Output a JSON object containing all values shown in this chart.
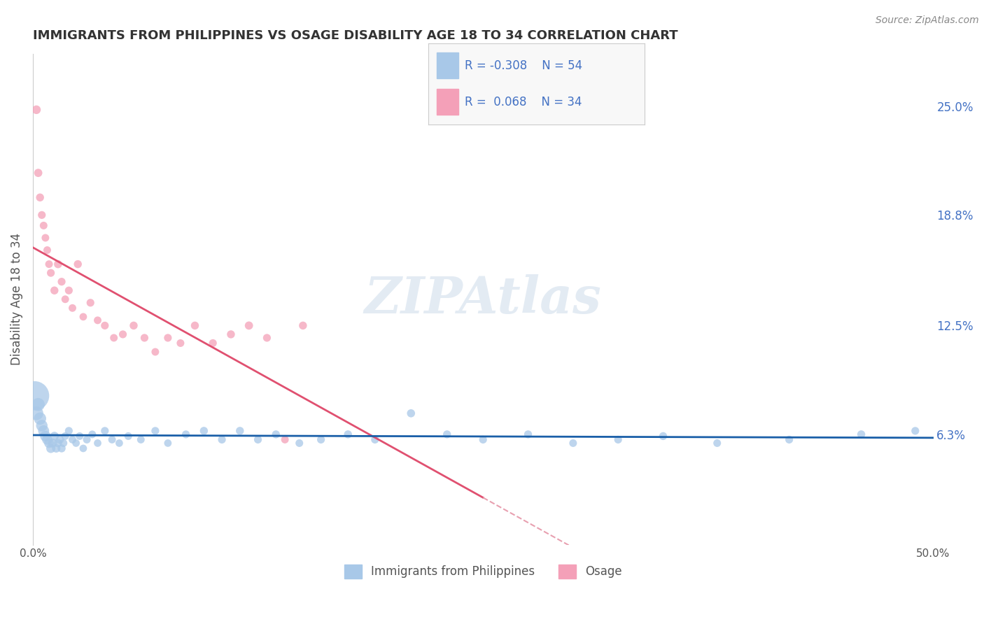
{
  "title": "IMMIGRANTS FROM PHILIPPINES VS OSAGE DISABILITY AGE 18 TO 34 CORRELATION CHART",
  "source": "Source: ZipAtlas.com",
  "ylabel": "Disability Age 18 to 34",
  "xlim": [
    0.0,
    0.5
  ],
  "ylim": [
    0.0,
    0.28
  ],
  "right_yticks": [
    0.063,
    0.125,
    0.188,
    0.25
  ],
  "right_yticklabels": [
    "6.3%",
    "12.5%",
    "18.8%",
    "25.0%"
  ],
  "legend_blue_label": "Immigrants from Philippines",
  "legend_pink_label": "Osage",
  "R_blue": -0.308,
  "N_blue": 54,
  "R_pink": 0.068,
  "N_pink": 34,
  "blue_color": "#a8c8e8",
  "pink_color": "#f4a0b8",
  "trendline_blue_color": "#1a5fa8",
  "trendline_pink_color": "#e05070",
  "trendline_pink_dashed_color": "#e8a0b0",
  "grid_color": "#cccccc",
  "background_color": "#ffffff",
  "blue_scatter": {
    "x": [
      0.001,
      0.002,
      0.003,
      0.004,
      0.005,
      0.006,
      0.007,
      0.008,
      0.009,
      0.01,
      0.011,
      0.012,
      0.013,
      0.014,
      0.015,
      0.016,
      0.017,
      0.018,
      0.02,
      0.022,
      0.024,
      0.026,
      0.028,
      0.03,
      0.033,
      0.036,
      0.04,
      0.044,
      0.048,
      0.053,
      0.06,
      0.068,
      0.075,
      0.085,
      0.095,
      0.105,
      0.115,
      0.125,
      0.135,
      0.148,
      0.16,
      0.175,
      0.19,
      0.21,
      0.23,
      0.25,
      0.275,
      0.3,
      0.325,
      0.35,
      0.38,
      0.42,
      0.46,
      0.49
    ],
    "y": [
      0.085,
      0.075,
      0.08,
      0.072,
      0.068,
      0.065,
      0.062,
      0.06,
      0.058,
      0.055,
      0.058,
      0.062,
      0.055,
      0.058,
      0.06,
      0.055,
      0.058,
      0.062,
      0.065,
      0.06,
      0.058,
      0.062,
      0.055,
      0.06,
      0.063,
      0.058,
      0.065,
      0.06,
      0.058,
      0.062,
      0.06,
      0.065,
      0.058,
      0.063,
      0.065,
      0.06,
      0.065,
      0.06,
      0.063,
      0.058,
      0.06,
      0.063,
      0.06,
      0.075,
      0.063,
      0.06,
      0.063,
      0.058,
      0.06,
      0.062,
      0.058,
      0.06,
      0.063,
      0.065
    ],
    "size": [
      900,
      200,
      180,
      160,
      140,
      130,
      120,
      110,
      100,
      90,
      85,
      80,
      75,
      72,
      70,
      68,
      65,
      62,
      65,
      62,
      60,
      62,
      60,
      63,
      62,
      60,
      65,
      62,
      60,
      63,
      62,
      65,
      60,
      65,
      68,
      65,
      68,
      65,
      67,
      63,
      65,
      68,
      65,
      70,
      67,
      65,
      67,
      63,
      65,
      67,
      63,
      65,
      68,
      65
    ]
  },
  "pink_scatter": {
    "x": [
      0.002,
      0.003,
      0.004,
      0.005,
      0.006,
      0.007,
      0.008,
      0.009,
      0.01,
      0.012,
      0.014,
      0.016,
      0.018,
      0.02,
      0.022,
      0.025,
      0.028,
      0.032,
      0.036,
      0.04,
      0.045,
      0.05,
      0.056,
      0.062,
      0.068,
      0.075,
      0.082,
      0.09,
      0.1,
      0.11,
      0.12,
      0.13,
      0.14,
      0.15
    ],
    "y": [
      0.248,
      0.212,
      0.198,
      0.188,
      0.182,
      0.175,
      0.168,
      0.16,
      0.155,
      0.145,
      0.16,
      0.15,
      0.14,
      0.145,
      0.135,
      0.16,
      0.13,
      0.138,
      0.128,
      0.125,
      0.118,
      0.12,
      0.125,
      0.118,
      0.11,
      0.118,
      0.115,
      0.125,
      0.115,
      0.12,
      0.125,
      0.118,
      0.06,
      0.125
    ],
    "size": [
      80,
      72,
      68,
      65,
      63,
      62,
      62,
      62,
      65,
      68,
      70,
      65,
      62,
      65,
      62,
      68,
      60,
      65,
      62,
      65,
      62,
      65,
      68,
      65,
      62,
      65,
      63,
      68,
      65,
      68,
      72,
      65,
      62,
      68
    ]
  }
}
